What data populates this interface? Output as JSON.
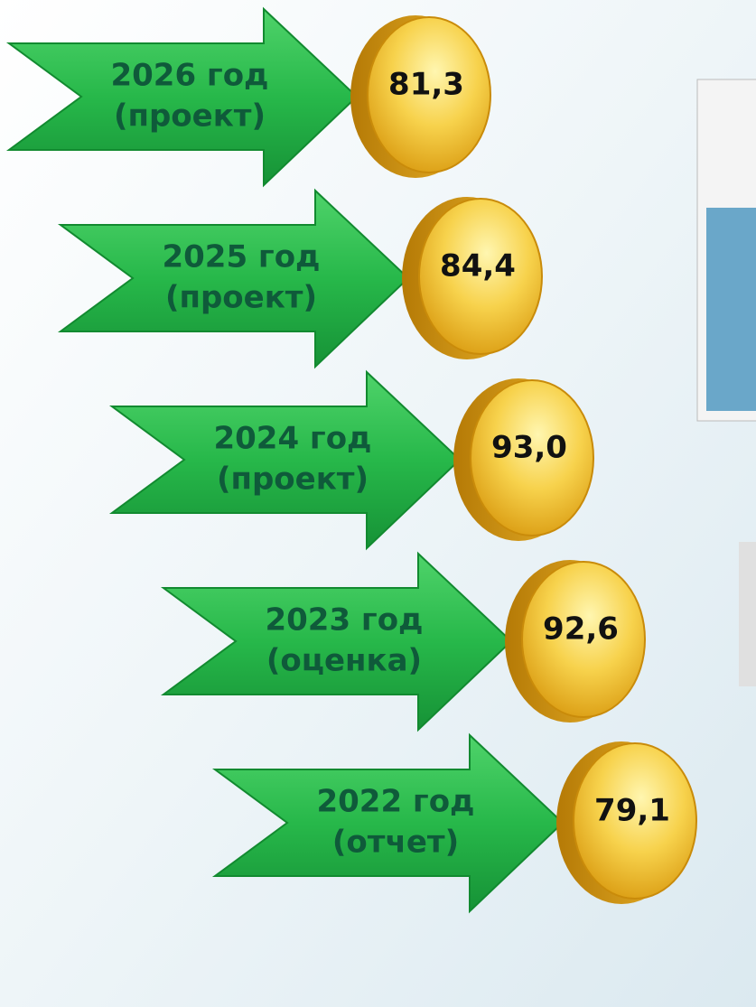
{
  "items": [
    {
      "label": [
        "2026 год",
        "(проект)"
      ],
      "value": "81,3"
    },
    {
      "label": [
        "2025 год",
        "(проект)"
      ],
      "value": "84,4"
    },
    {
      "label": [
        "2024 год",
        "(проект)"
      ],
      "value": "93,0"
    },
    {
      "label": [
        "2023 год",
        "(оценка)"
      ],
      "value": "92,6"
    },
    {
      "label": [
        "2022 год",
        "(отчет)"
      ],
      "value": "79,1"
    }
  ]
}
